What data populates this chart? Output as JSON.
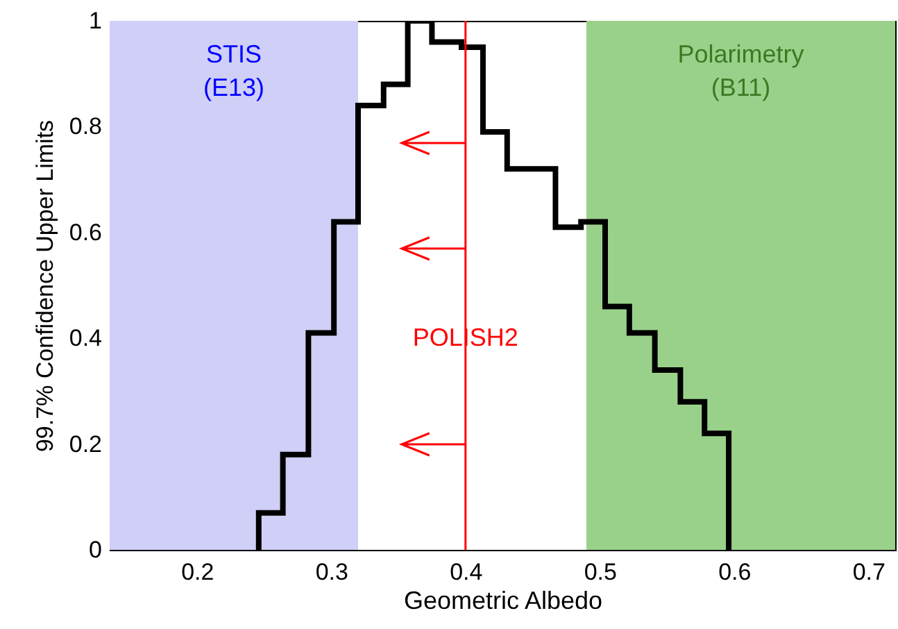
{
  "chart_data": {
    "type": "histogram",
    "xlabel": "Geometric Albedo",
    "ylabel": "99.7% Confidence Upper Limits",
    "bins": [
      0.246,
      0.264,
      0.283,
      0.302,
      0.32,
      0.339,
      0.357,
      0.375,
      0.397,
      0.413,
      0.431,
      0.467,
      0.486,
      0.504,
      0.522,
      0.541,
      0.56,
      0.578,
      0.596
    ],
    "values": [
      0.07,
      0.18,
      0.41,
      0.62,
      0.84,
      0.88,
      1.0,
      0.96,
      0.95,
      0.79,
      0.72,
      0.61,
      0.62,
      0.46,
      0.41,
      0.34,
      0.28,
      0.22
    ],
    "color": "#000000",
    "xlim": [
      0.135,
      0.72
    ],
    "xticks": [
      0.2,
      0.3,
      0.4,
      0.5,
      0.6,
      0.7
    ],
    "ylim": [
      0,
      1
    ],
    "yticks": [
      0,
      0.2,
      0.4,
      0.6,
      0.8,
      1
    ],
    "grid": false,
    "bands": [
      {
        "axis": "x",
        "from": 0.135,
        "to": 0.32,
        "label": "STIS\n(E13)",
        "color": "#cfcff7"
      },
      {
        "axis": "x",
        "from": 0.49,
        "to": 0.72,
        "label": "Polarimetry\n(B11)",
        "color": "#99d18a"
      }
    ],
    "ref_lines": [
      {
        "axis": "x",
        "value": 0.4,
        "label": "POLISH2",
        "color": "#ff0000"
      }
    ]
  }
}
